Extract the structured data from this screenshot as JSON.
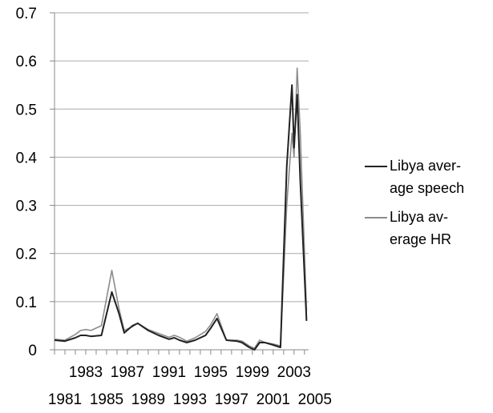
{
  "chart_data": {
    "type": "line",
    "title": "",
    "xlabel": "",
    "ylabel": "",
    "ylim": [
      0,
      0.7
    ],
    "yticks": [
      "0",
      "0.1",
      "0.2",
      "0.3",
      "0.4",
      "0.5",
      "0.6",
      "0.7"
    ],
    "xlim": [
      1981,
      2005
    ],
    "xticks_lower": [
      "1981",
      "1985",
      "1989",
      "1993",
      "1997",
      "2001",
      "2005"
    ],
    "xticks_upper": [
      "1983",
      "1987",
      "1991",
      "1995",
      "1999",
      "2003"
    ],
    "grid": true,
    "legend_position": "right",
    "series": [
      {
        "name": "Libya average speech",
        "legend_lines": [
          "Libya aver-",
          "age speech"
        ],
        "color": "#222222",
        "points": [
          [
            1980.0,
            0.02
          ],
          [
            1981.0,
            0.018
          ],
          [
            1982.0,
            0.025
          ],
          [
            1982.5,
            0.03
          ],
          [
            1983.0,
            0.03
          ],
          [
            1983.5,
            0.028
          ],
          [
            1984.5,
            0.03
          ],
          [
            1985.5,
            0.12
          ],
          [
            1986.2,
            0.075
          ],
          [
            1986.7,
            0.035
          ],
          [
            1987.5,
            0.05
          ],
          [
            1988.0,
            0.055
          ],
          [
            1989.0,
            0.04
          ],
          [
            1990.0,
            0.03
          ],
          [
            1991.0,
            0.022
          ],
          [
            1991.5,
            0.025
          ],
          [
            1992.0,
            0.02
          ],
          [
            1992.7,
            0.015
          ],
          [
            1993.5,
            0.02
          ],
          [
            1994.5,
            0.03
          ],
          [
            1995.0,
            0.045
          ],
          [
            1995.6,
            0.065
          ],
          [
            1996.5,
            0.02
          ],
          [
            1997.5,
            0.018
          ],
          [
            1998.0,
            0.015
          ],
          [
            1998.7,
            0.005
          ],
          [
            1999.2,
            0.0
          ],
          [
            1999.7,
            0.015
          ],
          [
            2000.2,
            0.015
          ],
          [
            2001.0,
            0.01
          ],
          [
            2001.7,
            0.005
          ],
          [
            2002.3,
            0.38
          ],
          [
            2002.8,
            0.55
          ],
          [
            2003.0,
            0.42
          ],
          [
            2003.3,
            0.53
          ],
          [
            2003.6,
            0.35
          ],
          [
            2004.2,
            0.06
          ]
        ]
      },
      {
        "name": "Libya average HR",
        "legend_lines": [
          "Libya av-",
          "erage HR"
        ],
        "color": "#8c8c8c",
        "points": [
          [
            1980.0,
            0.022
          ],
          [
            1981.0,
            0.02
          ],
          [
            1982.0,
            0.032
          ],
          [
            1982.5,
            0.04
          ],
          [
            1983.0,
            0.042
          ],
          [
            1983.5,
            0.04
          ],
          [
            1984.5,
            0.05
          ],
          [
            1985.5,
            0.165
          ],
          [
            1986.2,
            0.085
          ],
          [
            1986.7,
            0.04
          ],
          [
            1987.5,
            0.048
          ],
          [
            1988.0,
            0.055
          ],
          [
            1989.0,
            0.042
          ],
          [
            1990.0,
            0.034
          ],
          [
            1991.0,
            0.026
          ],
          [
            1991.5,
            0.03
          ],
          [
            1992.0,
            0.026
          ],
          [
            1992.7,
            0.018
          ],
          [
            1993.5,
            0.025
          ],
          [
            1994.5,
            0.038
          ],
          [
            1995.0,
            0.052
          ],
          [
            1995.6,
            0.075
          ],
          [
            1996.5,
            0.02
          ],
          [
            1997.5,
            0.02
          ],
          [
            1998.0,
            0.018
          ],
          [
            1998.7,
            0.008
          ],
          [
            1999.2,
            0.003
          ],
          [
            1999.7,
            0.02
          ],
          [
            2000.2,
            0.015
          ],
          [
            2001.0,
            0.012
          ],
          [
            2001.7,
            0.008
          ],
          [
            2002.3,
            0.3
          ],
          [
            2002.8,
            0.45
          ],
          [
            2003.0,
            0.4
          ],
          [
            2003.3,
            0.585
          ],
          [
            2003.6,
            0.45
          ],
          [
            2004.2,
            0.08
          ]
        ]
      }
    ]
  }
}
